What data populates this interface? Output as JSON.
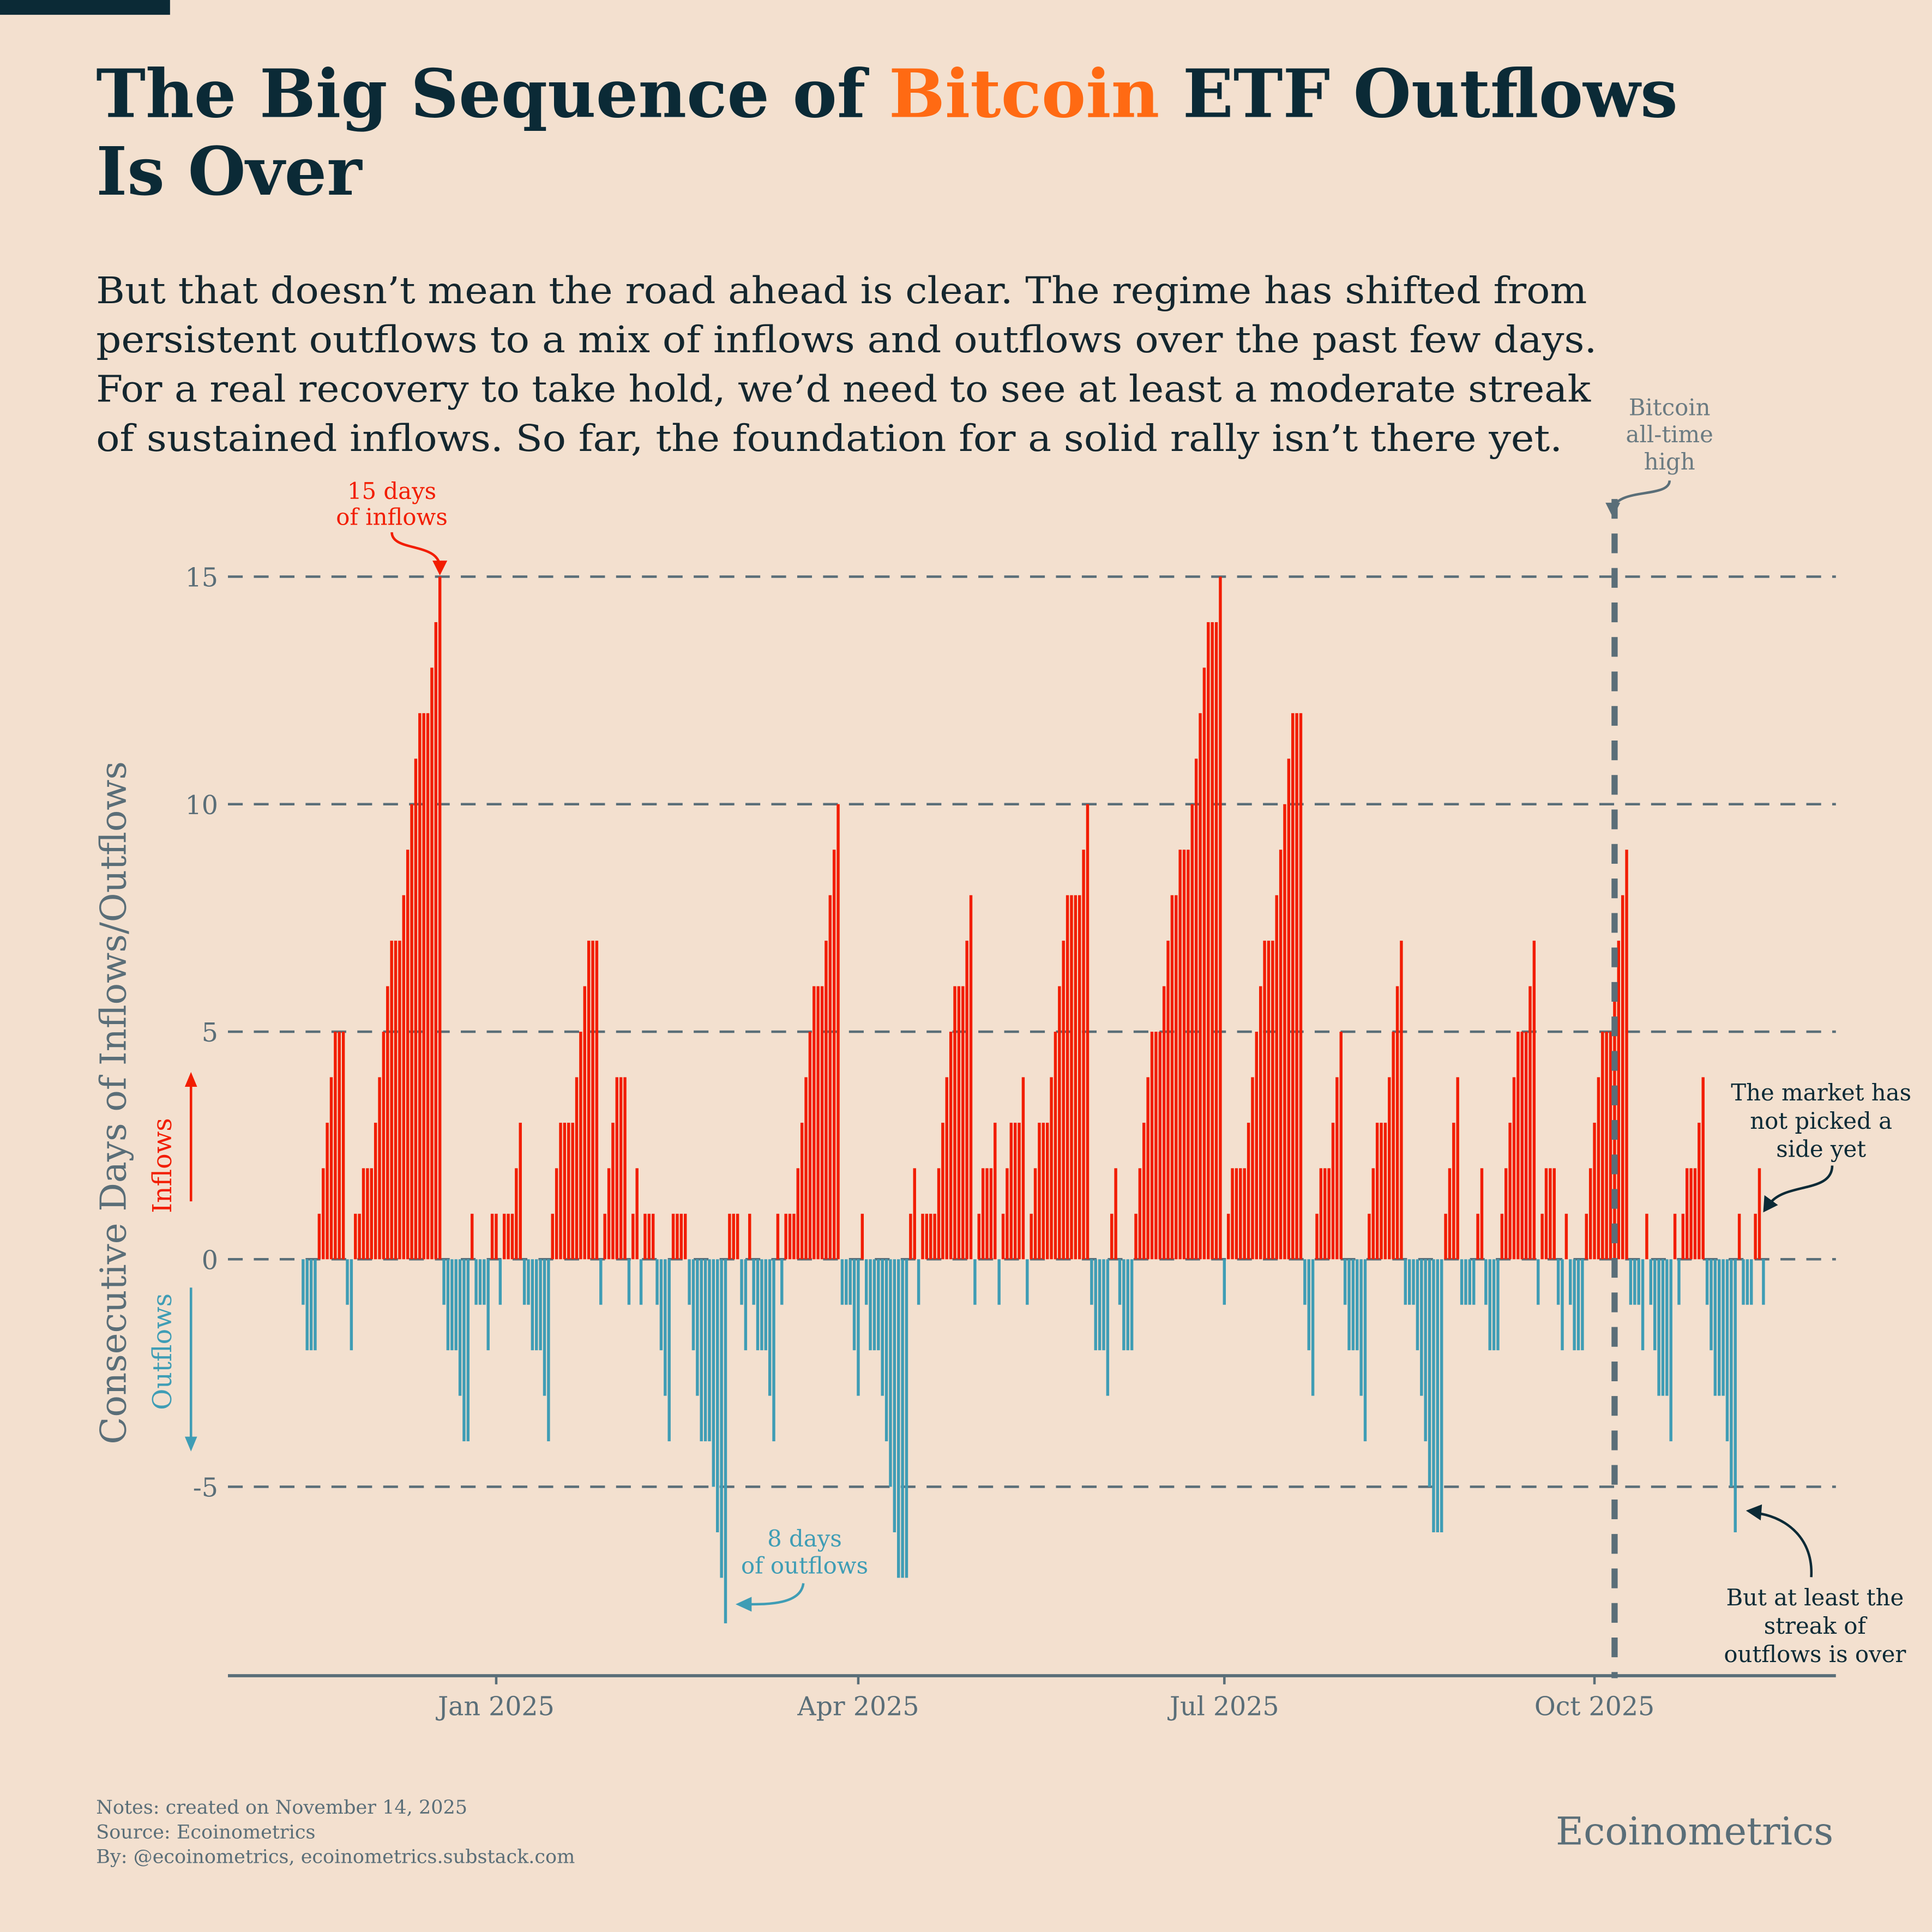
{
  "header": {
    "title_part1": "The Big Sequence of ",
    "title_highlight": "Bitcoin",
    "title_part2": " ETF Outflows",
    "title_line2": "Is Over",
    "subtitle_lines": [
      "But that doesn’t mean the road ahead is clear. The regime has shifted from",
      "persistent outflows to a mix of inflows and outflows over the past few days.",
      "For a real recovery to take hold, we’d need to see at least a moderate streak",
      "of sustained inflows. So far, the foundation for a solid rally isn’t there yet."
    ]
  },
  "colors": {
    "background": "#f3e0cf",
    "title": "#0b2a36",
    "highlight": "#ff6a13",
    "inflow": "#f21d00",
    "outflow": "#3f9db5",
    "axis": "#5a6e78"
  },
  "chart_data": {
    "type": "bar",
    "title": "Consecutive Days of Inflows/Outflows",
    "ylabel": "Consecutive Days of Inflows/Outflows",
    "ylabel_up": "Inflows",
    "ylabel_down": "Outflows",
    "ylim": [
      -9,
      16.5
    ],
    "yticks": [
      15,
      10,
      5,
      0,
      -5
    ],
    "ytick_labels": [
      "15",
      "10",
      "5",
      "0",
      "-5"
    ],
    "x_start": "2024-11-14",
    "x_step": "1 day",
    "xticks": [
      {
        "label": "Jan 2025",
        "index": 48
      },
      {
        "label": "Apr 2025",
        "index": 138
      },
      {
        "label": "Jul 2025",
        "index": 229
      },
      {
        "label": "Oct 2025",
        "index": 321
      }
    ],
    "grid": true,
    "values": [
      -1,
      -2,
      -2,
      -2,
      1,
      2,
      3,
      4,
      5,
      5,
      5,
      -1,
      -2,
      1,
      1,
      2,
      2,
      2,
      3,
      4,
      5,
      6,
      7,
      7,
      7,
      8,
      9,
      10,
      11,
      12,
      12,
      12,
      13,
      14,
      15,
      -1,
      -2,
      -2,
      -2,
      -3,
      -4,
      -4,
      1,
      -1,
      -1,
      -1,
      -2,
      1,
      1,
      -1,
      1,
      1,
      1,
      2,
      3,
      -1,
      -1,
      -2,
      -2,
      -2,
      -3,
      -4,
      1,
      2,
      3,
      3,
      3,
      3,
      4,
      5,
      6,
      7,
      7,
      7,
      -1,
      1,
      2,
      3,
      4,
      4,
      4,
      -1,
      1,
      2,
      -1,
      1,
      1,
      1,
      -1,
      -2,
      -3,
      -4,
      1,
      1,
      1,
      1,
      -1,
      -2,
      -3,
      -4,
      -4,
      -4,
      -5,
      -6,
      -7,
      -8,
      1,
      1,
      1,
      -1,
      -2,
      1,
      -1,
      -2,
      -2,
      -2,
      -3,
      -4,
      1,
      -1,
      1,
      1,
      1,
      2,
      3,
      4,
      5,
      6,
      6,
      6,
      7,
      8,
      9,
      10,
      -1,
      -1,
      -1,
      -2,
      -3,
      1,
      -1,
      -2,
      -2,
      -2,
      -3,
      -4,
      -5,
      -6,
      -7,
      -7,
      -7,
      1,
      2,
      -1,
      1,
      1,
      1,
      1,
      2,
      3,
      4,
      5,
      6,
      6,
      6,
      7,
      8,
      -1,
      1,
      2,
      2,
      2,
      3,
      -1,
      1,
      2,
      3,
      3,
      3,
      4,
      -1,
      1,
      2,
      3,
      3,
      3,
      4,
      5,
      6,
      7,
      8,
      8,
      8,
      8,
      9,
      10,
      -1,
      -2,
      -2,
      -2,
      -3,
      1,
      2,
      -1,
      -2,
      -2,
      -2,
      1,
      2,
      3,
      4,
      5,
      5,
      5,
      6,
      7,
      8,
      8,
      9,
      9,
      9,
      10,
      11,
      12,
      13,
      14,
      14,
      14,
      15,
      -1,
      1,
      2,
      2,
      2,
      2,
      3,
      4,
      5,
      6,
      7,
      7,
      7,
      8,
      9,
      10,
      11,
      12,
      12,
      12,
      -1,
      -2,
      -3,
      1,
      2,
      2,
      2,
      3,
      4,
      5,
      -1,
      -2,
      -2,
      -2,
      -3,
      -4,
      1,
      2,
      3,
      3,
      3,
      4,
      5,
      6,
      7,
      -1,
      -1,
      -1,
      -2,
      -3,
      -4,
      -5,
      -6,
      -6,
      -6,
      1,
      2,
      3,
      4,
      -1,
      -1,
      -1,
      -1,
      1,
      2,
      -1,
      -2,
      -2,
      -2,
      1,
      2,
      3,
      4,
      5,
      5,
      5,
      6,
      7,
      -1,
      1,
      2,
      2,
      2,
      -1,
      -2,
      1,
      -1,
      -2,
      -2,
      -2,
      1,
      2,
      3,
      4,
      5,
      5,
      5,
      6,
      7,
      8,
      9,
      -1,
      -1,
      -1,
      -2,
      1,
      -1,
      -2,
      -3,
      -3,
      -3,
      -4,
      1,
      -1,
      1,
      2,
      2,
      2,
      3,
      4,
      -1,
      -2,
      -3,
      -3,
      -3,
      -4,
      -5,
      -6,
      1,
      -1,
      -1,
      -1,
      1,
      2,
      -1
    ],
    "ath_marker_index": 326,
    "annotations": {
      "inflow_peak": [
        "15 days",
        "of inflows"
      ],
      "outflow_peak": [
        "8 days",
        "of outflows"
      ],
      "ath": [
        "Bitcoin",
        "all-time",
        "high"
      ],
      "market": [
        "The market has",
        "not picked a",
        "side yet"
      ],
      "streak_over": [
        "But at least the",
        "streak of",
        "outflows is over"
      ]
    }
  },
  "footer": {
    "notes": "Notes: created on November 14, 2025",
    "source": "Source: Ecoinometrics",
    "by": "By: @ecoinometrics, ecoinometrics.substack.com",
    "brand": "Ecoinometrics"
  }
}
